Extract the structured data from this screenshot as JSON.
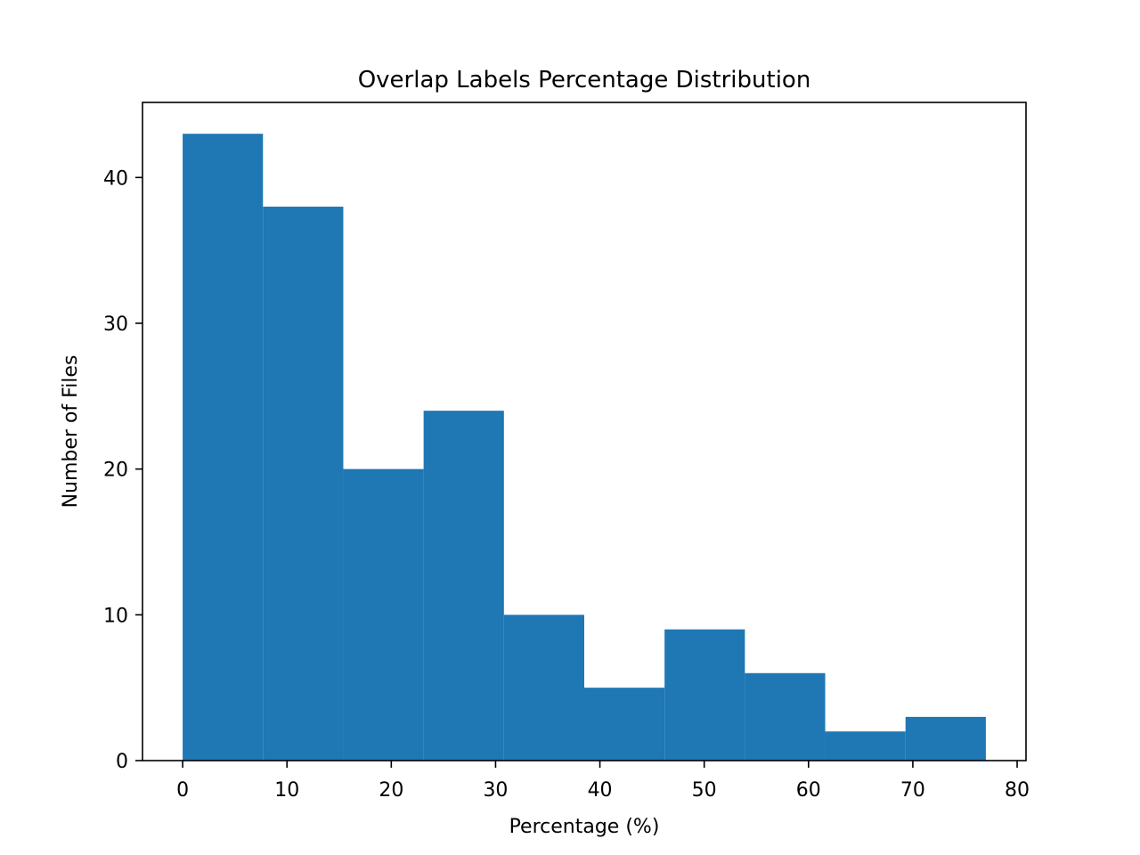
{
  "chart_data": {
    "type": "bar",
    "title": "Overlap Labels Percentage Distribution",
    "xlabel": "Percentage (%)",
    "ylabel": "Number of Files",
    "bin_edges": [
      0,
      7.7,
      15.4,
      23.1,
      30.8,
      38.5,
      46.2,
      53.9,
      61.6,
      69.3,
      77.0
    ],
    "values": [
      43,
      38,
      20,
      24,
      10,
      5,
      9,
      6,
      2,
      3
    ],
    "xlim": [
      -3.85,
      80.85
    ],
    "ylim": [
      0,
      45.15
    ],
    "xticks": [
      0,
      10,
      20,
      30,
      40,
      50,
      60,
      70,
      80
    ],
    "yticks": [
      0,
      10,
      20,
      30,
      40
    ],
    "grid": false,
    "bar_color": "#1f77b4"
  }
}
